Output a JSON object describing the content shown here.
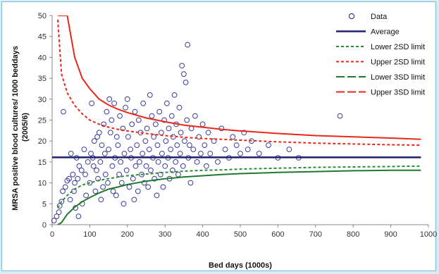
{
  "chart_data": {
    "type": "scatter",
    "xlabel": "Bed days (1000s)",
    "ylabel_line1": "MRSA positive blood cultures/ 1000 beddays",
    "ylabel_line2": "(2005/6)",
    "xlim": [
      0,
      1000
    ],
    "ylim": [
      0,
      50
    ],
    "x_ticks": [
      0,
      100,
      200,
      300,
      400,
      500,
      600,
      700,
      800,
      900,
      1000
    ],
    "y_ticks": [
      0,
      5,
      10,
      15,
      20,
      25,
      30,
      35,
      40,
      45,
      50
    ],
    "grid": false,
    "legend_position": "top-right",
    "average": 16.1,
    "legend": [
      {
        "key": "data",
        "label": "Data"
      },
      {
        "key": "average",
        "label": "Average"
      },
      {
        "key": "lower2",
        "label": "Lower 2SD limit"
      },
      {
        "key": "upper2",
        "label": "Upper 2SD limit"
      },
      {
        "key": "lower3",
        "label": "Lower 3SD limit"
      },
      {
        "key": "upper3",
        "label": "Upper 3SD limit"
      }
    ],
    "series_colors": {
      "data": "#3b3b9a",
      "average": "#1e1e6e",
      "lower2": "#2e8b3a",
      "lower3": "#1f7a2e",
      "upper2": "#e8281a",
      "upper3": "#e8281a"
    },
    "limits": {
      "x": [
        15,
        25,
        40,
        60,
        80,
        100,
        125,
        150,
        175,
        200,
        250,
        300,
        350,
        400,
        450,
        500,
        600,
        700,
        800,
        900,
        980
      ],
      "upper2": [
        49,
        36,
        31.5,
        28.5,
        26.5,
        25,
        24,
        23.3,
        22.8,
        22.4,
        21.8,
        21.3,
        20.9,
        20.6,
        20.4,
        20.2,
        19.8,
        19.5,
        19.3,
        19.1,
        19
      ],
      "lower2": [
        4,
        5.5,
        7,
        8.5,
        9.5,
        10,
        10.6,
        11,
        11.4,
        11.7,
        12.1,
        12.5,
        12.8,
        13,
        13.1,
        13.3,
        13.5,
        13.7,
        13.8,
        13.9,
        14
      ],
      "upper3": [
        50,
        50,
        50,
        40,
        35,
        32.5,
        30,
        28.6,
        27.6,
        26.8,
        25.5,
        24.6,
        23.8,
        23.3,
        22.8,
        22.4,
        21.8,
        21.3,
        21,
        20.7,
        20.4
      ],
      "lower3": [
        0,
        0.5,
        2.5,
        4.2,
        5.5,
        6.5,
        7.6,
        8.5,
        9,
        9.6,
        10.4,
        11,
        11.4,
        11.7,
        12,
        12.2,
        12.5,
        12.7,
        12.9,
        13,
        13
      ]
    },
    "points": [
      [
        5,
        1
      ],
      [
        12,
        2
      ],
      [
        18,
        3
      ],
      [
        20,
        4.5
      ],
      [
        25,
        5.5
      ],
      [
        28,
        8
      ],
      [
        30,
        27
      ],
      [
        35,
        9
      ],
      [
        40,
        10.5
      ],
      [
        45,
        11
      ],
      [
        48,
        6
      ],
      [
        50,
        17
      ],
      [
        55,
        12
      ],
      [
        58,
        8
      ],
      [
        60,
        10
      ],
      [
        62,
        4
      ],
      [
        65,
        16
      ],
      [
        68,
        11
      ],
      [
        70,
        2
      ],
      [
        72,
        14
      ],
      [
        78,
        13
      ],
      [
        80,
        5
      ],
      [
        85,
        18
      ],
      [
        88,
        12
      ],
      [
        90,
        7
      ],
      [
        95,
        15
      ],
      [
        100,
        10
      ],
      [
        103,
        17
      ],
      [
        105,
        29
      ],
      [
        108,
        16
      ],
      [
        110,
        14
      ],
      [
        112,
        20
      ],
      [
        115,
        8
      ],
      [
        118,
        13
      ],
      [
        120,
        21
      ],
      [
        122,
        11
      ],
      [
        125,
        22
      ],
      [
        128,
        15
      ],
      [
        130,
        6
      ],
      [
        132,
        19
      ],
      [
        135,
        9
      ],
      [
        137,
        24
      ],
      [
        140,
        17
      ],
      [
        142,
        12
      ],
      [
        145,
        27
      ],
      [
        148,
        10
      ],
      [
        150,
        18
      ],
      [
        152,
        30
      ],
      [
        155,
        22
      ],
      [
        158,
        25
      ],
      [
        160,
        14
      ],
      [
        162,
        8
      ],
      [
        165,
        29
      ],
      [
        167,
        16
      ],
      [
        170,
        7
      ],
      [
        172,
        21
      ],
      [
        175,
        19
      ],
      [
        178,
        12
      ],
      [
        180,
        26
      ],
      [
        182,
        15
      ],
      [
        185,
        10
      ],
      [
        188,
        23
      ],
      [
        190,
        5
      ],
      [
        192,
        17
      ],
      [
        195,
        28
      ],
      [
        198,
        13
      ],
      [
        200,
        30
      ],
      [
        202,
        21
      ],
      [
        205,
        9
      ],
      [
        208,
        18
      ],
      [
        210,
        16
      ],
      [
        212,
        24
      ],
      [
        215,
        11
      ],
      [
        218,
        6
      ],
      [
        220,
        27
      ],
      [
        222,
        14
      ],
      [
        225,
        19
      ],
      [
        228,
        8
      ],
      [
        230,
        25
      ],
      [
        232,
        15
      ],
      [
        235,
        22
      ],
      [
        238,
        12
      ],
      [
        240,
        17
      ],
      [
        242,
        29
      ],
      [
        245,
        10
      ],
      [
        248,
        20
      ],
      [
        250,
        14
      ],
      [
        252,
        23
      ],
      [
        255,
        9
      ],
      [
        258,
        18
      ],
      [
        260,
        31
      ],
      [
        262,
        13
      ],
      [
        265,
        26
      ],
      [
        268,
        16
      ],
      [
        270,
        21
      ],
      [
        272,
        11
      ],
      [
        275,
        24
      ],
      [
        278,
        7
      ],
      [
        280,
        19
      ],
      [
        282,
        15
      ],
      [
        285,
        27
      ],
      [
        288,
        12
      ],
      [
        290,
        22
      ],
      [
        292,
        17
      ],
      [
        295,
        9
      ],
      [
        298,
        25
      ],
      [
        300,
        14
      ],
      [
        302,
        20
      ],
      [
        305,
        29
      ],
      [
        308,
        16
      ],
      [
        310,
        23
      ],
      [
        312,
        11
      ],
      [
        315,
        18
      ],
      [
        318,
        26
      ],
      [
        320,
        13
      ],
      [
        322,
        21
      ],
      [
        325,
        31
      ],
      [
        328,
        15
      ],
      [
        330,
        24
      ],
      [
        332,
        19
      ],
      [
        335,
        12
      ],
      [
        338,
        28
      ],
      [
        340,
        17
      ],
      [
        342,
        22
      ],
      [
        345,
        38
      ],
      [
        348,
        14
      ],
      [
        350,
        36
      ],
      [
        352,
        20
      ],
      [
        355,
        34
      ],
      [
        358,
        25
      ],
      [
        360,
        43
      ],
      [
        362,
        16
      ],
      [
        365,
        19
      ],
      [
        368,
        10
      ],
      [
        370,
        23
      ],
      [
        375,
        18
      ],
      [
        380,
        26
      ],
      [
        385,
        15
      ],
      [
        390,
        21
      ],
      [
        395,
        17
      ],
      [
        400,
        24
      ],
      [
        405,
        19
      ],
      [
        410,
        14
      ],
      [
        415,
        22
      ],
      [
        420,
        17
      ],
      [
        430,
        20
      ],
      [
        440,
        15
      ],
      [
        450,
        23
      ],
      [
        460,
        18
      ],
      [
        470,
        16
      ],
      [
        480,
        21
      ],
      [
        490,
        19
      ],
      [
        500,
        17
      ],
      [
        510,
        22
      ],
      [
        520,
        18
      ],
      [
        530,
        20
      ],
      [
        550,
        17
      ],
      [
        575,
        19
      ],
      [
        600,
        16
      ],
      [
        630,
        18
      ],
      [
        655,
        16
      ],
      [
        765,
        26
      ]
    ]
  }
}
